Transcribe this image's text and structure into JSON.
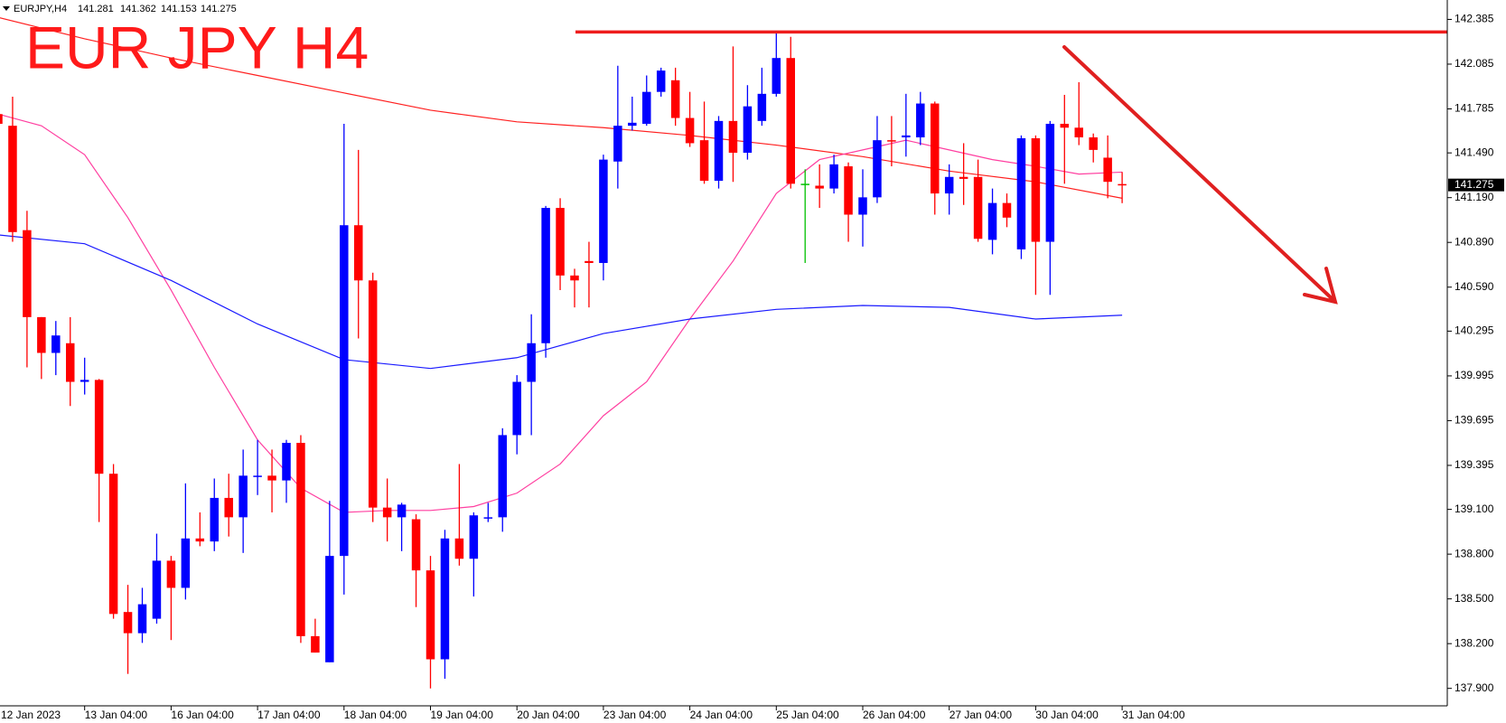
{
  "chart_data": {
    "type": "candlestick",
    "symbol": "EURJPY,H4",
    "title": "EUR JPY H4",
    "categories": [
      "12 Jan 2023",
      null,
      null,
      null,
      null,
      null,
      "13 Jan 04:00",
      null,
      null,
      null,
      null,
      null,
      "16 Jan 04:00",
      null,
      null,
      null,
      null,
      null,
      "17 Jan 04:00",
      null,
      null,
      null,
      null,
      null,
      "18 Jan 04:00",
      null,
      null,
      null,
      null,
      null,
      "19 Jan 04:00",
      null,
      null,
      null,
      null,
      null,
      "20 Jan 04:00",
      null,
      null,
      null,
      null,
      null,
      "23 Jan 04:00",
      null,
      null,
      null,
      null,
      null,
      "24 Jan 04:00",
      null,
      null,
      null,
      null,
      null,
      "25 Jan 04:00",
      null,
      null,
      null,
      null,
      null,
      "26 Jan 04:00",
      null,
      null,
      null,
      null,
      null,
      "27 Jan 04:00",
      null,
      null,
      null,
      null,
      null,
      "30 Jan 04:00",
      null,
      null,
      null,
      null,
      null,
      "31 Jan 04:00"
    ],
    "open": [
      141.75,
      141.672,
      140.972,
      140.389,
      140.149,
      140.214,
      139.955,
      139.968,
      139.339,
      138.412,
      138.27,
      138.367,
      138.756,
      138.574,
      138.905,
      138.885,
      139.177,
      139.047,
      139.319,
      139.326,
      139.294,
      139.546,
      138.25,
      138.075,
      138.788,
      141.005,
      140.635,
      139.112,
      139.047,
      139.034,
      138.691,
      138.095,
      138.905,
      138.769,
      139.041,
      139.047,
      139.598,
      139.955,
      140.214,
      141.121,
      140.668,
      140.765,
      140.752,
      141.432,
      141.672,
      141.685,
      141.899,
      141.977,
      141.724,
      141.575,
      141.303,
      141.704,
      141.491,
      141.704,
      141.886,
      142.126,
      141.283,
      141.27,
      141.251,
      141.4,
      141.076,
      141.192,
      141.575,
      141.594,
      141.594,
      141.821,
      141.218,
      141.329,
      141.329,
      140.907,
      141.154,
      140.843,
      141.588,
      140.894,
      141.685,
      141.659,
      141.594,
      141.458,
      141.281
    ],
    "high": [
      141.769,
      141.867,
      141.102,
      140.389,
      140.363,
      140.389,
      140.117,
      139.974,
      139.404,
      138.594,
      138.574,
      138.937,
      138.788,
      139.274,
      139.08,
      139.307,
      139.339,
      139.501,
      139.566,
      139.501,
      139.566,
      139.598,
      138.367,
      139.157,
      141.685,
      141.51,
      140.687,
      139.307,
      139.144,
      139.067,
      138.788,
      138.963,
      139.404,
      139.08,
      139.144,
      139.644,
      140.0,
      140.408,
      141.134,
      141.186,
      140.713,
      140.894,
      141.478,
      142.074,
      141.867,
      142.009,
      142.061,
      142.061,
      141.899,
      141.834,
      141.737,
      142.204,
      141.944,
      142.061,
      142.301,
      142.268,
      141.38,
      141.413,
      141.478,
      141.426,
      141.38,
      141.737,
      141.737,
      141.886,
      141.899,
      141.834,
      141.413,
      141.555,
      141.445,
      141.251,
      141.218,
      141.607,
      141.607,
      141.704,
      141.879,
      141.964,
      141.62,
      141.607,
      141.362
    ],
    "low": [
      141.672,
      140.894,
      140.052,
      139.974,
      140.0,
      139.793,
      139.87,
      139.015,
      138.367,
      137.997,
      138.205,
      138.334,
      138.224,
      138.496,
      138.853,
      138.82,
      138.918,
      138.808,
      139.196,
      139.08,
      139.144,
      138.205,
      138.14,
      138.075,
      138.529,
      140.246,
      139.015,
      138.885,
      138.82,
      138.445,
      137.9,
      137.965,
      138.723,
      138.516,
      139.015,
      138.95,
      139.469,
      139.598,
      140.117,
      140.57,
      140.454,
      140.454,
      140.635,
      141.251,
      141.64,
      141.672,
      141.867,
      141.672,
      141.53,
      141.283,
      141.251,
      141.296,
      141.445,
      141.672,
      141.867,
      141.251,
      140.752,
      141.121,
      141.218,
      140.894,
      140.862,
      141.154,
      141.4,
      141.465,
      141.542,
      141.076,
      141.076,
      141.141,
      140.894,
      140.81,
      140.992,
      140.778,
      140.538,
      140.538,
      141.283,
      141.542,
      141.426,
      141.186,
      141.153
    ],
    "close": [
      141.685,
      140.959,
      140.389,
      140.149,
      140.266,
      139.955,
      139.968,
      139.339,
      138.399,
      138.27,
      138.464,
      138.756,
      138.574,
      138.905,
      138.885,
      139.177,
      139.047,
      139.326,
      139.326,
      139.294,
      139.546,
      138.25,
      138.14,
      138.788,
      141.005,
      140.635,
      139.112,
      139.047,
      139.132,
      138.691,
      138.095,
      138.905,
      138.769,
      139.06,
      139.047,
      139.598,
      139.955,
      140.214,
      141.121,
      140.668,
      140.635,
      140.752,
      141.445,
      141.672,
      141.692,
      141.899,
      142.042,
      141.724,
      141.555,
      141.303,
      141.704,
      141.491,
      141.802,
      141.886,
      142.126,
      141.283,
      141.283,
      141.251,
      141.413,
      141.076,
      141.192,
      141.575,
      141.568,
      141.607,
      141.821,
      141.218,
      141.329,
      141.316,
      140.914,
      141.154,
      141.056,
      141.588,
      140.894,
      141.685,
      141.659,
      141.594,
      141.51,
      141.296,
      141.275
    ],
    "up_color": "#0000ff",
    "down_color": "#ff0000",
    "doji_color": "#00c000",
    "series": [
      {
        "color": "#ff2020",
        "x": [
          0,
          6,
          12,
          18,
          24,
          30,
          36,
          42,
          48,
          54,
          60,
          66,
          72,
          78
        ],
        "values": [
          142.398,
          142.255,
          142.126,
          142.009,
          141.892,
          141.776,
          141.698,
          141.659,
          141.607,
          141.542,
          141.465,
          141.368,
          141.296,
          141.186
        ]
      },
      {
        "color": "#ff3fa0",
        "x": [
          0,
          3,
          6,
          9,
          12,
          15,
          18,
          21,
          24,
          27,
          30,
          33,
          36,
          39,
          42,
          45,
          48,
          51,
          54,
          57,
          60,
          63,
          66,
          69,
          72,
          75,
          78
        ],
        "values": [
          141.75,
          141.672,
          141.478,
          141.056,
          140.57,
          140.052,
          139.566,
          139.242,
          139.08,
          139.093,
          139.093,
          139.119,
          139.209,
          139.404,
          139.728,
          139.955,
          140.376,
          140.765,
          141.218,
          141.445,
          141.51,
          141.575,
          141.51,
          141.445,
          141.4,
          141.348,
          141.361
        ]
      },
      {
        "color": "#1a1aff",
        "x": [
          0,
          6,
          12,
          18,
          24,
          30,
          36,
          42,
          48,
          54,
          60,
          66,
          72,
          78
        ],
        "values": [
          140.94,
          140.881,
          140.635,
          140.343,
          140.104,
          140.045,
          140.117,
          140.279,
          140.376,
          140.441,
          140.467,
          140.454,
          140.376,
          140.402
        ]
      }
    ],
    "resistance": 142.301,
    "resistance_color": "#ee1c1c",
    "ylim": [
      137.783,
      142.515
    ],
    "yticks": [
      142.385,
      142.085,
      141.785,
      {
        "value": 141.49,
        "label": "141.490"
      },
      {
        "value": 141.19,
        "label": "141.190"
      },
      {
        "value": 140.89,
        "label": "140.890"
      },
      {
        "value": 140.59,
        "label": "140.590"
      },
      140.295,
      139.995,
      139.695,
      139.395,
      {
        "value": 139.1,
        "label": "139.100"
      },
      {
        "value": 138.8,
        "label": "138.800"
      },
      {
        "value": 138.5,
        "label": "138.500"
      },
      {
        "value": 138.2,
        "label": "138.200"
      },
      {
        "value": 137.9,
        "label": "137.900"
      }
    ],
    "grid": false
  }
}
